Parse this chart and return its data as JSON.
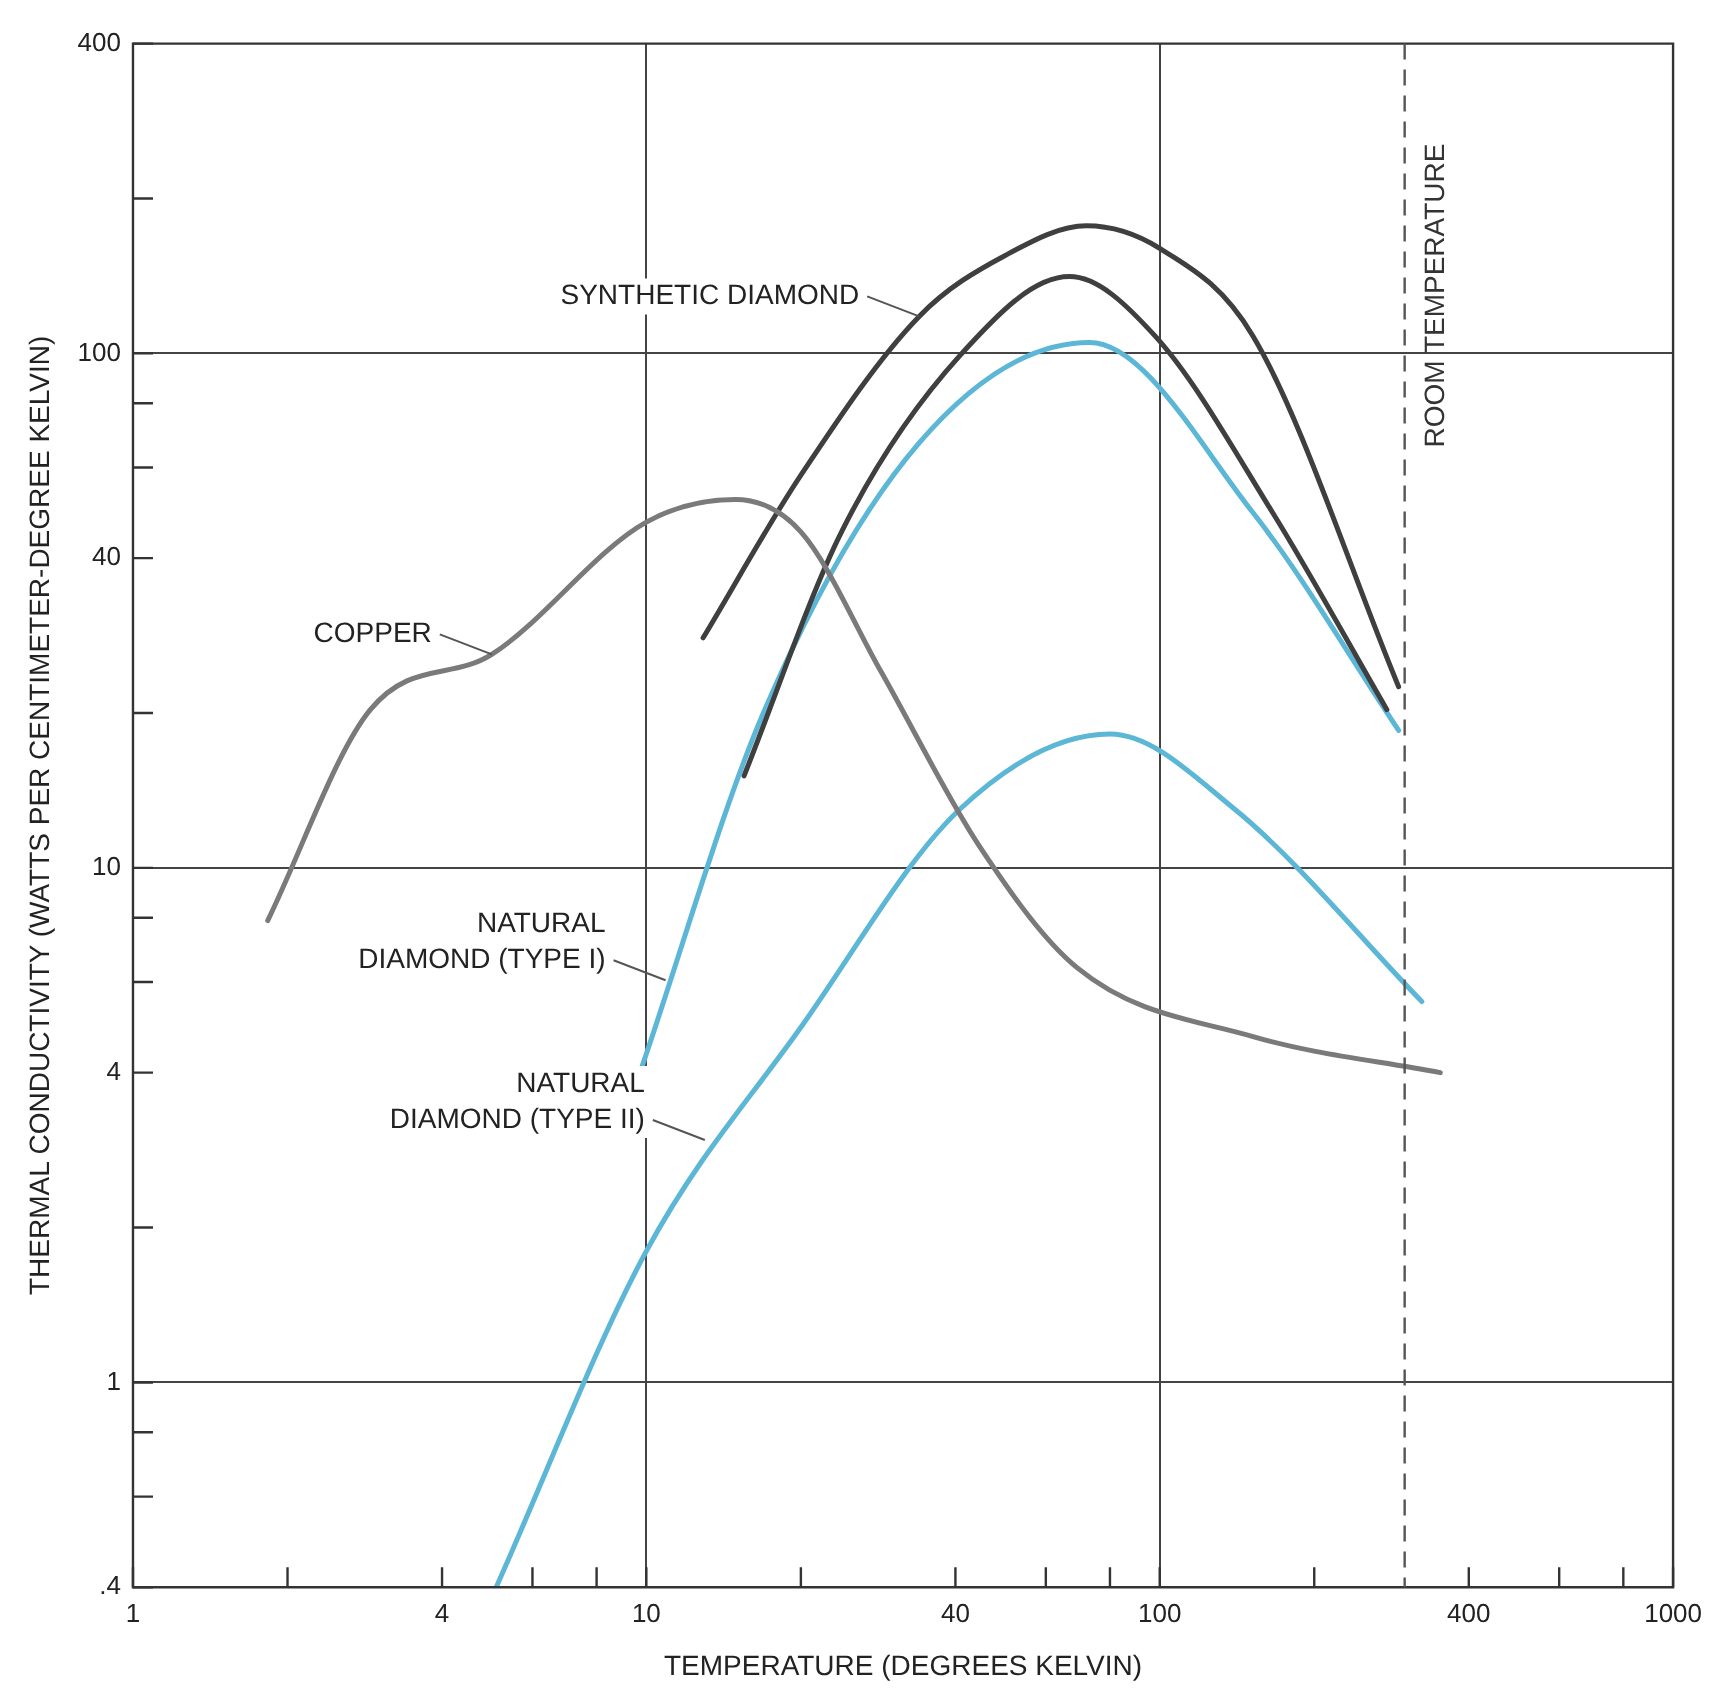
{
  "chart_data": {
    "type": "line",
    "xlabel": "TEMPERATURE (DEGREES KELVIN)",
    "ylabel": "THERMAL CONDUCTIVITY (WATTS PER CENTIMETER-DEGREE KELVIN)",
    "log": "xy",
    "grid": true,
    "legend": false,
    "marker": "none",
    "line_style": "solid",
    "xlim": [
      1,
      1000
    ],
    "ylim": [
      0.4,
      400
    ],
    "xticks": [
      1,
      {
        "value": 2,
        "label": null
      },
      4,
      {
        "value": 6,
        "label": null
      },
      {
        "value": 8,
        "label": null
      },
      10,
      {
        "value": 20,
        "label": null
      },
      40,
      {
        "value": 60,
        "label": null
      },
      {
        "value": 80,
        "label": null
      },
      100,
      {
        "value": 200,
        "label": null
      },
      400,
      {
        "value": 600,
        "label": null
      },
      {
        "value": 800,
        "label": null
      },
      1000
    ],
    "yticks": [
      {
        "value": 0.4,
        "label": ".4"
      },
      {
        "value": 0.6,
        "label": null
      },
      {
        "value": 0.8,
        "label": null
      },
      1,
      {
        "value": 2,
        "label": null
      },
      4,
      {
        "value": 6,
        "label": null
      },
      {
        "value": 8,
        "label": null
      },
      10,
      {
        "value": 20,
        "label": null
      },
      40,
      {
        "value": 60,
        "label": null
      },
      {
        "value": 80,
        "label": null
      },
      100,
      {
        "value": 200,
        "label": null
      },
      400
    ],
    "series": [
      {
        "color": "#7a7a7a",
        "x": [
          1.83,
          2.9,
          5,
          10,
          14.9,
          20,
          28.7,
          44.6,
          69,
          152,
          352
        ],
        "values": [
          7.9,
          20.3,
          26,
          47,
          52,
          45,
          24,
          11,
          6.4,
          4.7,
          4.0
        ]
      },
      {
        "color": "#3f3f3f",
        "x": [
          12.9,
          20,
          34,
          50,
          72,
          100,
          152,
          292
        ],
        "values": [
          28,
          58,
          118,
          155,
          177,
          160,
          108,
          22.5
        ]
      },
      {
        "color": "#3f3f3f",
        "x": [
          15.5,
          24,
          40.8,
          66.7,
          98,
          166,
          277
        ],
        "values": [
          15.1,
          45,
          99,
          141,
          108,
          49,
          20.3
        ]
      },
      {
        "color": "#5cb6d6",
        "x": [
          9.8,
          16.9,
          34,
          73,
          152,
          292
        ],
        "values": [
          4.1,
          20,
          67,
          105,
          49,
          18.5
        ]
      },
      {
        "color": "#5cb6d6",
        "x": [
          5.1,
          10,
          20,
          40.8,
          80,
          140,
          324
        ],
        "values": [
          0.4,
          1.8,
          4.9,
          13,
          18.2,
          13,
          5.5
        ]
      }
    ],
    "ref_lines": [
      {
        "axis": "x",
        "value": 300,
        "label": "ROOM TEMPERATURE",
        "color": "#555555",
        "line_style": "dashed"
      }
    ],
    "annotations": [
      {
        "text": "SYNTHETIC DIAMOND",
        "x": 34,
        "y": 118
      },
      {
        "text": "COPPER",
        "x": 5,
        "y": 26
      },
      {
        "text": "NATURAL\nDIAMOND (TYPE I)",
        "x": 10.9,
        "y": 6.05
      },
      {
        "text": "NATURAL\nDIAMOND (TYPE II)",
        "x": 13,
        "y": 2.96
      }
    ]
  }
}
